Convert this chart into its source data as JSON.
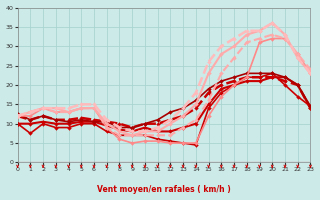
{
  "xlabel": "Vent moyen/en rafales ( km/h )",
  "xlim": [
    0,
    23
  ],
  "ylim": [
    0,
    40
  ],
  "xticks": [
    0,
    1,
    2,
    3,
    4,
    5,
    6,
    7,
    8,
    9,
    10,
    11,
    12,
    13,
    14,
    15,
    16,
    17,
    18,
    19,
    20,
    21,
    22,
    23
  ],
  "yticks": [
    0,
    5,
    10,
    15,
    20,
    25,
    30,
    35,
    40
  ],
  "bg_color": "#cceae8",
  "grid_color": "#aad4d0",
  "series": [
    {
      "x": [
        0,
        1,
        2,
        3,
        4,
        5,
        6,
        7,
        8,
        9,
        10,
        11,
        12,
        13,
        14,
        15,
        16,
        17,
        18,
        19,
        20,
        21,
        22,
        23
      ],
      "y": [
        10,
        7.5,
        10,
        9,
        9,
        10,
        10,
        8,
        7,
        7,
        7,
        6,
        5.5,
        5,
        4.5,
        14,
        18,
        20,
        22,
        22,
        23,
        20,
        17,
        14.5
      ],
      "color": "#cc0000",
      "lw": 1.2,
      "marker": "D",
      "ms": 2.0
    },
    {
      "x": [
        0,
        1,
        2,
        3,
        4,
        5,
        6,
        7,
        8,
        9,
        10,
        11,
        12,
        13,
        14,
        15,
        16,
        17,
        18,
        19,
        20,
        21,
        22,
        23
      ],
      "y": [
        10,
        10,
        10.5,
        10,
        10,
        10.5,
        10.5,
        9.5,
        8.5,
        8,
        9,
        8,
        8,
        9,
        10,
        15,
        19,
        20,
        21,
        21,
        22,
        22,
        20,
        14
      ],
      "color": "#cc0000",
      "lw": 1.5,
      "marker": "D",
      "ms": 2.0
    },
    {
      "x": [
        0,
        1,
        2,
        3,
        4,
        5,
        6,
        7,
        8,
        9,
        10,
        11,
        12,
        13,
        14,
        15,
        16,
        17,
        18,
        19,
        20,
        21,
        22,
        23
      ],
      "y": [
        12,
        11,
        12,
        11,
        11,
        11.5,
        11,
        10.5,
        10,
        9,
        10,
        10,
        11,
        12,
        14,
        18,
        20,
        21,
        22,
        22,
        22,
        21,
        20,
        14
      ],
      "color": "#cc0000",
      "lw": 1.8,
      "marker": "D",
      "ms": 2.0,
      "dashed": true
    },
    {
      "x": [
        0,
        1,
        2,
        3,
        4,
        5,
        6,
        7,
        8,
        9,
        10,
        11,
        12,
        13,
        14,
        15,
        16,
        17,
        18,
        19,
        20,
        21,
        22,
        23
      ],
      "y": [
        12.5,
        11,
        12,
        11,
        10.5,
        11,
        10.5,
        10.5,
        9,
        9,
        10,
        11,
        13,
        14,
        16,
        19,
        21,
        22,
        23,
        23,
        23,
        22,
        20,
        14.5
      ],
      "color": "#aa0000",
      "lw": 1.2,
      "marker": "D",
      "ms": 2.0
    },
    {
      "x": [
        0,
        1,
        2,
        3,
        4,
        5,
        6,
        7,
        8,
        9,
        10,
        11,
        12,
        13,
        14,
        15,
        16,
        17,
        18,
        19,
        20,
        21,
        22,
        23
      ],
      "y": [
        12,
        12,
        14,
        13,
        13,
        14,
        14,
        9,
        6,
        5,
        5.5,
        5.5,
        5,
        5,
        5,
        12,
        17,
        20,
        22,
        31,
        32,
        32,
        28,
        23
      ],
      "color": "#ff8888",
      "lw": 1.2,
      "marker": "D",
      "ms": 2.0
    },
    {
      "x": [
        0,
        1,
        2,
        3,
        4,
        5,
        6,
        7,
        8,
        9,
        10,
        11,
        12,
        13,
        14,
        15,
        16,
        17,
        18,
        19,
        20,
        21,
        22,
        23
      ],
      "y": [
        12,
        13,
        14,
        14,
        13,
        14,
        14,
        10,
        8,
        7,
        8,
        8,
        10,
        12,
        15,
        23,
        28,
        30,
        33,
        34,
        36,
        33,
        27,
        23
      ],
      "color": "#ffaaaa",
      "lw": 1.5,
      "marker": "D",
      "ms": 2.0
    },
    {
      "x": [
        0,
        1,
        2,
        3,
        4,
        5,
        6,
        7,
        8,
        9,
        10,
        11,
        12,
        13,
        14,
        15,
        16,
        17,
        18,
        19,
        20,
        21,
        22,
        23
      ],
      "y": [
        12,
        13,
        14,
        13,
        13,
        14,
        14,
        9,
        7,
        7,
        7,
        7,
        7,
        9,
        11,
        16,
        23,
        27,
        31,
        32,
        33,
        32,
        28,
        24
      ],
      "color": "#ffaaaa",
      "lw": 1.5,
      "marker": "D",
      "ms": 2.0,
      "dashed": true
    },
    {
      "x": [
        0,
        1,
        2,
        3,
        4,
        5,
        6,
        7,
        8,
        9,
        10,
        11,
        12,
        13,
        14,
        15,
        16,
        17,
        18,
        19,
        20,
        21,
        22,
        23
      ],
      "y": [
        12,
        13,
        14,
        14,
        14,
        15,
        15,
        11,
        9,
        8,
        8,
        9,
        11,
        14,
        18,
        26,
        30,
        32,
        34,
        34,
        36,
        33,
        27,
        23
      ],
      "color": "#ffbbbb",
      "lw": 1.8,
      "marker": "D",
      "ms": 2.0,
      "dashed": true
    }
  ]
}
